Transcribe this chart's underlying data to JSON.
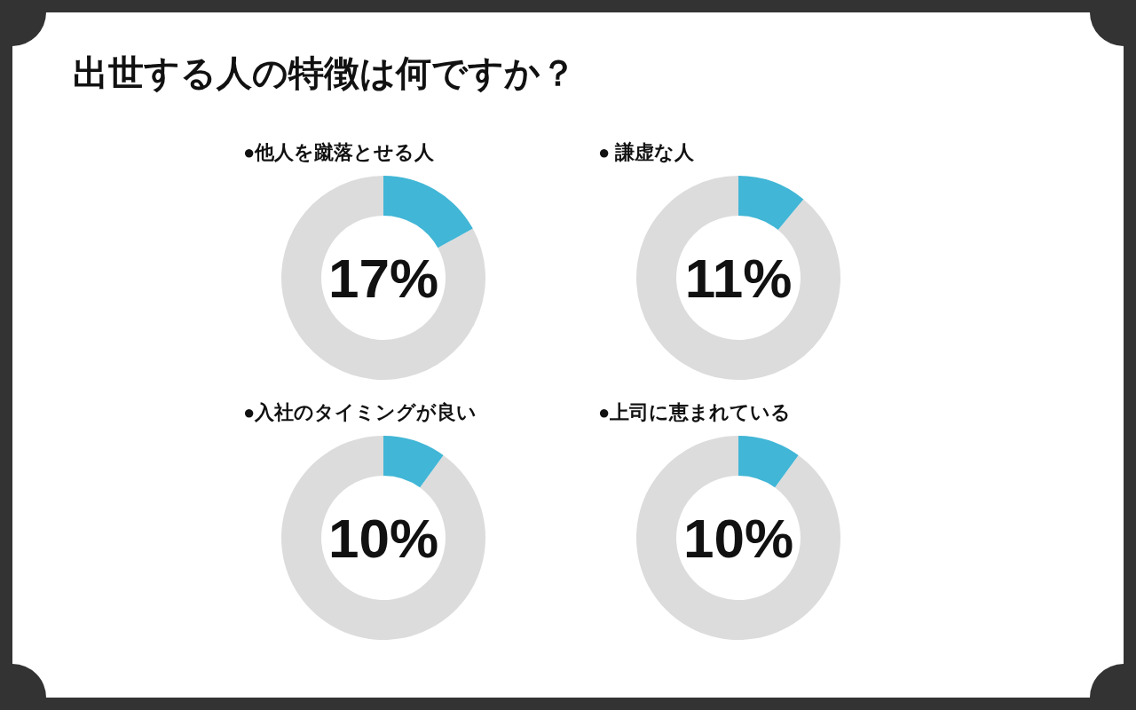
{
  "chart_data": [
    {
      "type": "other",
      "title": "出世する人の特徴は何ですか？"
    },
    {
      "type": "donut",
      "title": "●他人を蹴落とせる人",
      "categories": [
        null,
        null
      ],
      "values": [
        17,
        83
      ],
      "colors": [
        "#41b6d6",
        "#dcdcdc"
      ],
      "annotations": [
        "17%"
      ]
    },
    {
      "type": "donut",
      "title": "● 謙虚な人",
      "categories": [
        null,
        null
      ],
      "values": [
        11,
        89
      ],
      "colors": [
        "#41b6d6",
        "#dcdcdc"
      ],
      "annotations": [
        "11%"
      ]
    },
    {
      "type": "donut",
      "title": "●入社のタイミングが良い",
      "categories": [
        null,
        null
      ],
      "values": [
        10,
        90
      ],
      "colors": [
        "#41b6d6",
        "#dcdcdc"
      ],
      "annotations": [
        "10%"
      ]
    },
    {
      "type": "donut",
      "title": "●上司に恵まれている",
      "categories": [
        null,
        null
      ],
      "values": [
        10,
        90
      ],
      "colors": [
        "#41b6d6",
        "#dcdcdc"
      ],
      "annotations": [
        "10%"
      ]
    }
  ]
}
